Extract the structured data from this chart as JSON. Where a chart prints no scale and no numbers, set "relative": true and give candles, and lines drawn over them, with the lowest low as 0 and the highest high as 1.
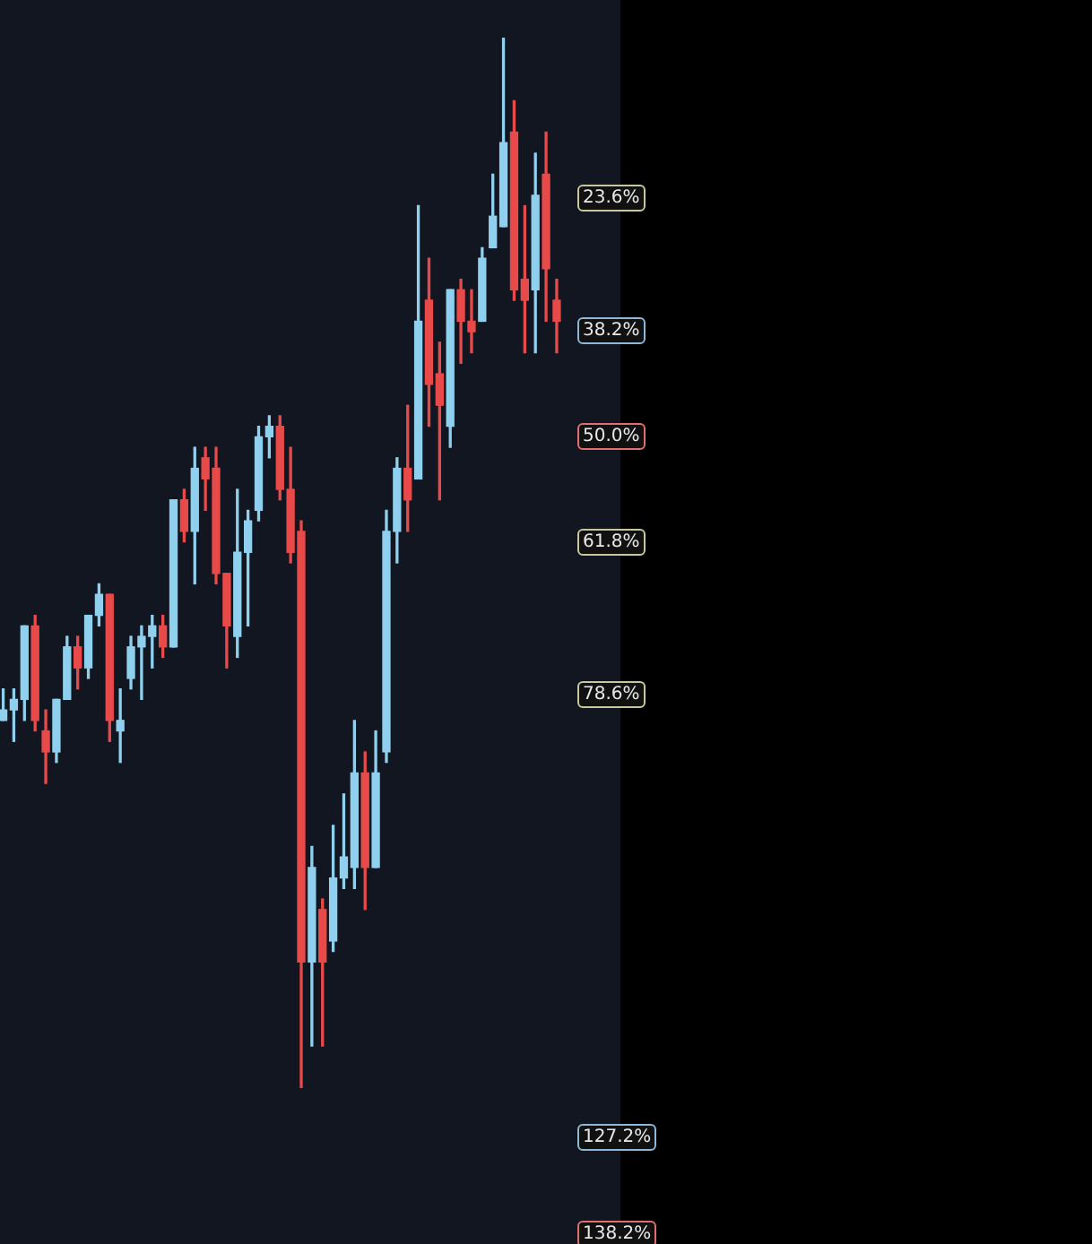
{
  "chart_data": {
    "type": "candlestick",
    "relative": true,
    "categories": [
      null,
      null,
      null,
      null,
      null,
      null,
      null,
      null,
      null,
      null,
      null,
      null,
      null,
      null,
      null,
      null,
      null,
      null,
      null,
      null,
      null,
      null,
      null,
      null,
      null,
      null,
      null,
      null,
      null,
      null,
      null,
      null,
      null,
      null,
      null,
      null,
      null,
      null,
      null,
      null,
      null,
      null,
      null,
      null,
      null,
      null,
      null,
      null,
      null,
      null,
      null,
      null,
      null
    ],
    "ohlc": [
      [
        0.35,
        0.38,
        0.35,
        0.36
      ],
      [
        0.36,
        0.38,
        0.33,
        0.37
      ],
      [
        0.37,
        0.44,
        0.35,
        0.44
      ],
      [
        0.44,
        0.45,
        0.34,
        0.35
      ],
      [
        0.34,
        0.36,
        0.29,
        0.32
      ],
      [
        0.32,
        0.37,
        0.31,
        0.37
      ],
      [
        0.37,
        0.43,
        0.37,
        0.42
      ],
      [
        0.42,
        0.43,
        0.38,
        0.4
      ],
      [
        0.4,
        0.45,
        0.39,
        0.45
      ],
      [
        0.45,
        0.48,
        0.44,
        0.47
      ],
      [
        0.47,
        0.47,
        0.33,
        0.35
      ],
      [
        0.34,
        0.38,
        0.31,
        0.35
      ],
      [
        0.39,
        0.43,
        0.38,
        0.42
      ],
      [
        0.42,
        0.44,
        0.37,
        0.43
      ],
      [
        0.43,
        0.45,
        0.4,
        0.44
      ],
      [
        0.44,
        0.45,
        0.41,
        0.42
      ],
      [
        0.42,
        0.56,
        0.42,
        0.56
      ],
      [
        0.56,
        0.57,
        0.52,
        0.53
      ],
      [
        0.53,
        0.61,
        0.48,
        0.59
      ],
      [
        0.6,
        0.61,
        0.55,
        0.58
      ],
      [
        0.59,
        0.61,
        0.48,
        0.49
      ],
      [
        0.49,
        0.49,
        0.4,
        0.44
      ],
      [
        0.43,
        0.57,
        0.41,
        0.51
      ],
      [
        0.51,
        0.55,
        0.44,
        0.54
      ],
      [
        0.55,
        0.63,
        0.54,
        0.62
      ],
      [
        0.62,
        0.64,
        0.6,
        0.63
      ],
      [
        0.63,
        0.64,
        0.56,
        0.57
      ],
      [
        0.57,
        0.61,
        0.5,
        0.51
      ],
      [
        0.53,
        0.54,
        0,
        0.12
      ],
      [
        0.12,
        0.23,
        0.04,
        0.21
      ],
      [
        0.17,
        0.18,
        0.04,
        0.12
      ],
      [
        0.14,
        0.25,
        0.13,
        0.2
      ],
      [
        0.2,
        0.28,
        0.19,
        0.22
      ],
      [
        0.21,
        0.35,
        0.19,
        0.3
      ],
      [
        0.3,
        0.32,
        0.17,
        0.21
      ],
      [
        0.21,
        0.34,
        0.21,
        0.3
      ],
      [
        0.32,
        0.55,
        0.31,
        0.53
      ],
      [
        0.53,
        0.6,
        0.5,
        0.59
      ],
      [
        0.59,
        0.65,
        0.53,
        0.56
      ],
      [
        0.58,
        0.84,
        0.58,
        0.73
      ],
      [
        0.75,
        0.79,
        0.63,
        0.67
      ],
      [
        0.68,
        0.71,
        0.56,
        0.65
      ],
      [
        0.63,
        0.76,
        0.61,
        0.76
      ],
      [
        0.76,
        0.77,
        0.69,
        0.73
      ],
      [
        0.73,
        0.76,
        0.7,
        0.72
      ],
      [
        0.73,
        0.8,
        0.73,
        0.79
      ],
      [
        0.8,
        0.87,
        0.8,
        0.83
      ],
      [
        0.82,
        1,
        0.82,
        0.9
      ],
      [
        0.91,
        0.94,
        0.75,
        0.76
      ],
      [
        0.77,
        0.84,
        0.7,
        0.75
      ],
      [
        0.76,
        0.89,
        0.7,
        0.85
      ],
      [
        0.87,
        0.91,
        0.73,
        0.78
      ],
      [
        0.75,
        0.77,
        0.7,
        0.73
      ]
    ],
    "colors": [
      "#8fd0ee",
      "#8fd0ee",
      "#8fd0ee",
      "#e84a4a",
      "#e84a4a",
      "#8fd0ee",
      "#8fd0ee",
      "#e84a4a",
      "#8fd0ee",
      "#8fd0ee",
      "#e84a4a",
      "#8fd0ee",
      "#8fd0ee",
      "#8fd0ee",
      "#8fd0ee",
      "#e84a4a",
      "#8fd0ee",
      "#e84a4a",
      "#8fd0ee",
      "#e84a4a",
      "#e84a4a",
      "#e84a4a",
      "#8fd0ee",
      "#8fd0ee",
      "#8fd0ee",
      "#8fd0ee",
      "#e84a4a",
      "#e84a4a",
      "#e84a4a",
      "#8fd0ee",
      "#e84a4a",
      "#8fd0ee",
      "#8fd0ee",
      "#8fd0ee",
      "#e84a4a",
      "#8fd0ee",
      "#8fd0ee",
      "#8fd0ee",
      "#e84a4a",
      "#8fd0ee",
      "#e84a4a",
      "#e84a4a",
      "#8fd0ee",
      "#e84a4a",
      "#e84a4a",
      "#8fd0ee",
      "#8fd0ee",
      "#8fd0ee",
      "#e84a4a",
      "#e84a4a",
      "#8fd0ee",
      "#e84a4a",
      "#e84a4a"
    ],
    "annotations": [
      "23.6%",
      "38.2%",
      "50.0%",
      "61.8%",
      "78.6%",
      "127.2%",
      "138.2%"
    ]
  }
}
